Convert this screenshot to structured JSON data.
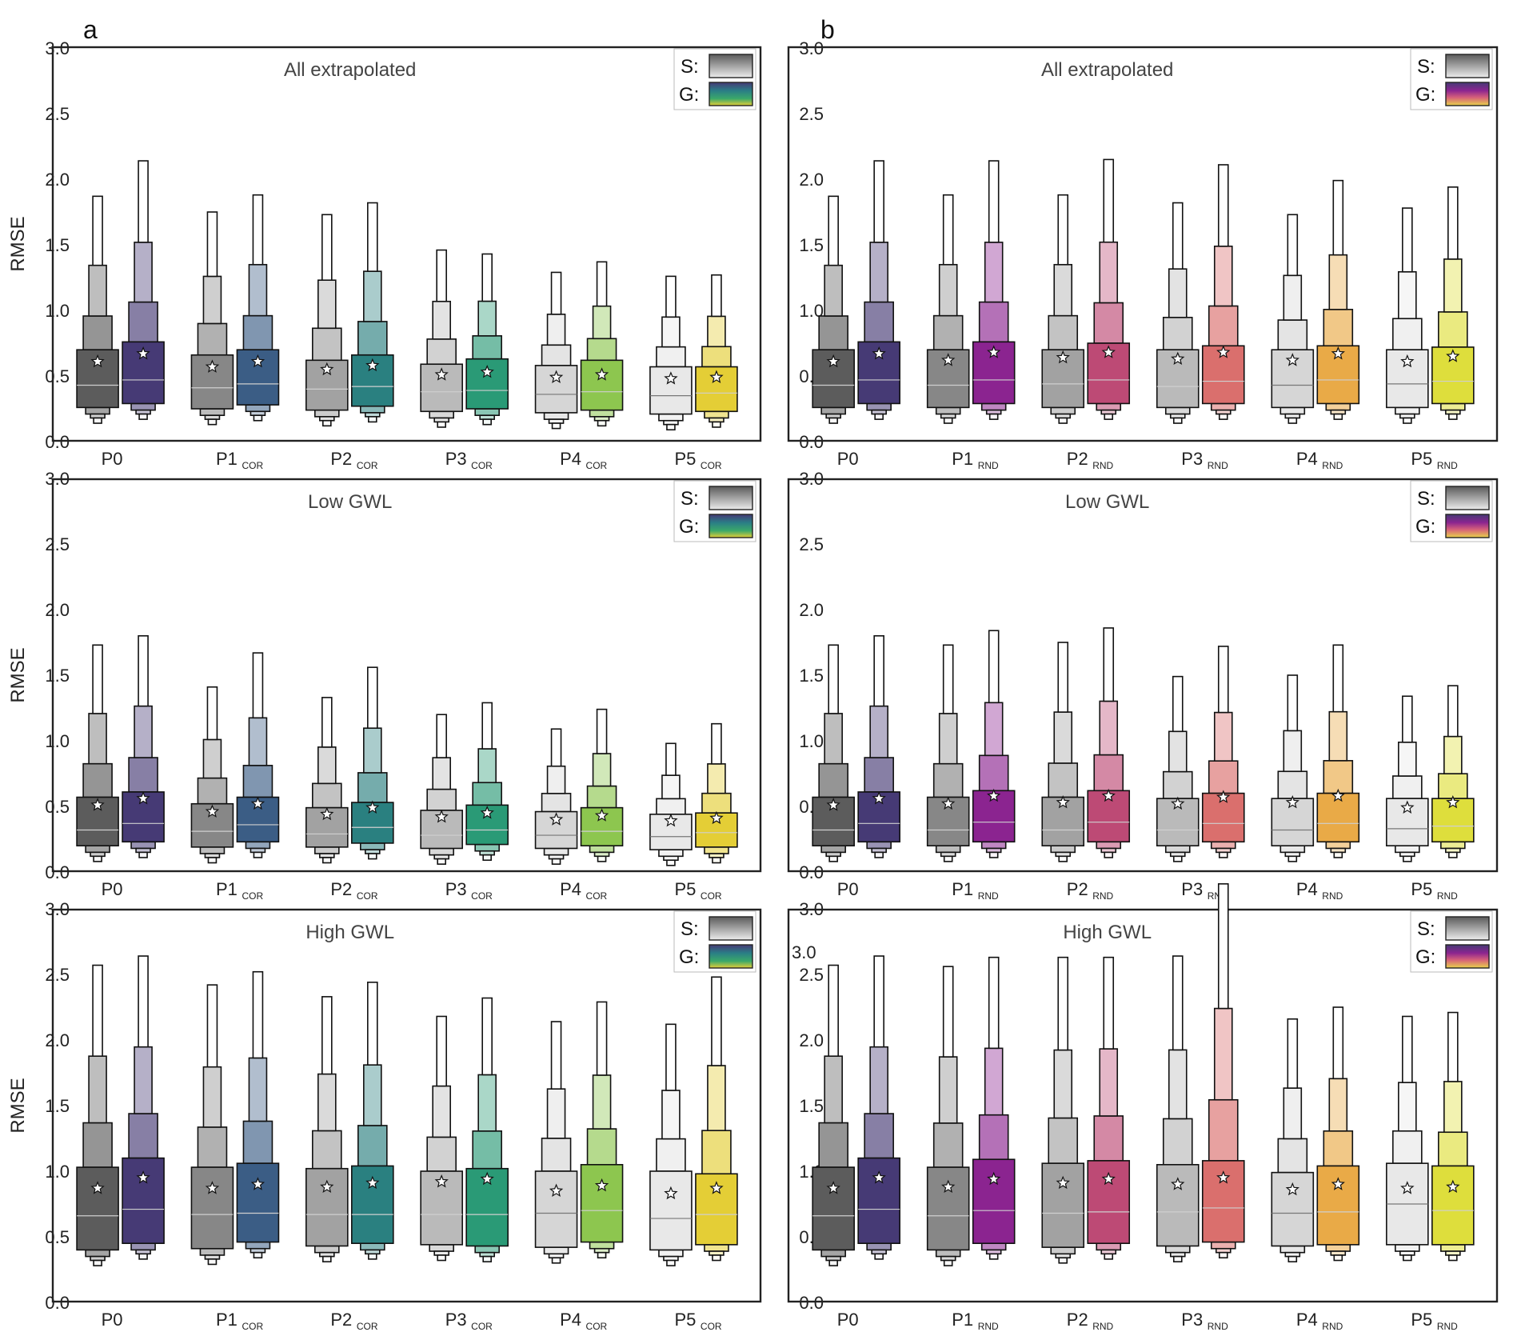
{
  "figure_labels": [
    "a",
    "b"
  ],
  "y_axis_label": "RMSE",
  "y_ticks": [
    "0.0",
    "0.5",
    "1.0",
    "1.5",
    "2.0",
    "2.5",
    "3.0"
  ],
  "stray_tick_label": "3.0",
  "legend": {
    "s_label": "S:",
    "g_label": "G:"
  },
  "colors": {
    "S": [
      "#5c5c5c",
      "#878787",
      "#a2a2a2",
      "#bababa",
      "#d6d6d6",
      "#e8e8e8"
    ],
    "G_a": [
      "#463a75",
      "#3b5d85",
      "#2a8080",
      "#2a9a76",
      "#8dc64f",
      "#e4ce36"
    ],
    "G_b": [
      "#463a75",
      "#8b2490",
      "#bd4a75",
      "#da6f6d",
      "#e9aa47",
      "#dede3c"
    ]
  },
  "chart_data": [
    {
      "type": "boxen",
      "panel": "a",
      "title": "All extrapolated",
      "ylabel": "RMSE",
      "ylim": [
        0,
        3
      ],
      "categories": [
        "P0",
        "P1COR",
        "P2COR",
        "P3COR",
        "P4COR",
        "P5COR"
      ],
      "cat_main": [
        "P0",
        "P1",
        "P2",
        "P3",
        "P4",
        "P5"
      ],
      "cat_sub": [
        "",
        "COR",
        "COR",
        "COR",
        "COR",
        "COR"
      ],
      "series": [
        {
          "name": "S",
          "median": [
            0.43,
            0.41,
            0.4,
            0.38,
            0.36,
            0.35
          ],
          "mean": [
            0.61,
            0.57,
            0.55,
            0.51,
            0.49,
            0.48
          ],
          "q1": [
            0.26,
            0.25,
            0.24,
            0.23,
            0.22,
            0.21
          ],
          "q3": [
            0.7,
            0.66,
            0.62,
            0.59,
            0.58,
            0.57
          ],
          "top": [
            1.87,
            1.75,
            1.73,
            1.46,
            1.29,
            1.26
          ]
        },
        {
          "name": "G",
          "median": [
            0.47,
            0.44,
            0.42,
            0.39,
            0.38,
            0.37
          ],
          "mean": [
            0.67,
            0.61,
            0.58,
            0.53,
            0.51,
            0.49
          ],
          "q1": [
            0.29,
            0.28,
            0.27,
            0.25,
            0.24,
            0.23
          ],
          "q3": [
            0.76,
            0.7,
            0.66,
            0.63,
            0.62,
            0.57
          ],
          "top": [
            2.14,
            1.88,
            1.82,
            1.43,
            1.37,
            1.27
          ]
        }
      ]
    },
    {
      "type": "boxen",
      "panel": "b",
      "title": "All extrapolated",
      "ylabel": "RMSE",
      "ylim": [
        0,
        3
      ],
      "categories": [
        "P0",
        "P1RND",
        "P2RND",
        "P3RND",
        "P4RND",
        "P5RND"
      ],
      "cat_main": [
        "P0",
        "P1",
        "P2",
        "P3",
        "P4",
        "P5"
      ],
      "cat_sub": [
        "",
        "RND",
        "RND",
        "RND",
        "RND",
        "RND"
      ],
      "series": [
        {
          "name": "S",
          "median": [
            0.43,
            0.43,
            0.44,
            0.42,
            0.43,
            0.44
          ],
          "mean": [
            0.61,
            0.62,
            0.64,
            0.63,
            0.62,
            0.61
          ],
          "q1": [
            0.26,
            0.26,
            0.26,
            0.26,
            0.26,
            0.26
          ],
          "q3": [
            0.7,
            0.7,
            0.7,
            0.7,
            0.7,
            0.7
          ],
          "top": [
            1.87,
            1.88,
            1.88,
            1.82,
            1.73,
            1.78
          ]
        },
        {
          "name": "G",
          "median": [
            0.47,
            0.47,
            0.47,
            0.46,
            0.47,
            0.46
          ],
          "mean": [
            0.67,
            0.68,
            0.68,
            0.68,
            0.67,
            0.65
          ],
          "q1": [
            0.29,
            0.29,
            0.29,
            0.29,
            0.29,
            0.29
          ],
          "q3": [
            0.76,
            0.76,
            0.75,
            0.73,
            0.73,
            0.72
          ],
          "top": [
            2.14,
            2.14,
            2.15,
            2.11,
            1.99,
            1.94
          ]
        }
      ]
    },
    {
      "type": "boxen",
      "panel": "a",
      "title": "Low GWL",
      "ylabel": "RMSE",
      "ylim": [
        0,
        3
      ],
      "categories": [
        "P0",
        "P1COR",
        "P2COR",
        "P3COR",
        "P4COR",
        "P5COR"
      ],
      "cat_main": [
        "P0",
        "P1",
        "P2",
        "P3",
        "P4",
        "P5"
      ],
      "cat_sub": [
        "",
        "COR",
        "COR",
        "COR",
        "COR",
        "COR"
      ],
      "series": [
        {
          "name": "S",
          "median": [
            0.32,
            0.31,
            0.29,
            0.28,
            0.28,
            0.27
          ],
          "mean": [
            0.51,
            0.46,
            0.44,
            0.42,
            0.4,
            0.39
          ],
          "q1": [
            0.2,
            0.19,
            0.19,
            0.18,
            0.18,
            0.17
          ],
          "q3": [
            0.57,
            0.52,
            0.49,
            0.47,
            0.46,
            0.44
          ],
          "top": [
            1.73,
            1.41,
            1.33,
            1.2,
            1.09,
            0.98
          ]
        },
        {
          "name": "G",
          "median": [
            0.37,
            0.36,
            0.34,
            0.32,
            0.31,
            0.3
          ],
          "mean": [
            0.56,
            0.52,
            0.49,
            0.45,
            0.43,
            0.41
          ],
          "q1": [
            0.23,
            0.23,
            0.22,
            0.21,
            0.2,
            0.19
          ],
          "q3": [
            0.61,
            0.57,
            0.53,
            0.51,
            0.49,
            0.45
          ],
          "top": [
            1.8,
            1.67,
            1.56,
            1.29,
            1.24,
            1.13
          ]
        }
      ]
    },
    {
      "type": "boxen",
      "panel": "b",
      "title": "Low GWL",
      "ylabel": "RMSE",
      "ylim": [
        0,
        3
      ],
      "categories": [
        "P0",
        "P1RND",
        "P2RND",
        "P3RND",
        "P4RND",
        "P5RND"
      ],
      "cat_main": [
        "P0",
        "P1",
        "P2",
        "P3",
        "P4",
        "P5"
      ],
      "cat_sub": [
        "",
        "RND",
        "RND",
        "RND",
        "RND",
        "RND"
      ],
      "series": [
        {
          "name": "S",
          "median": [
            0.32,
            0.32,
            0.32,
            0.32,
            0.32,
            0.33
          ],
          "mean": [
            0.51,
            0.52,
            0.53,
            0.52,
            0.53,
            0.49
          ],
          "q1": [
            0.2,
            0.2,
            0.2,
            0.2,
            0.2,
            0.2
          ],
          "q3": [
            0.57,
            0.57,
            0.57,
            0.56,
            0.56,
            0.56
          ],
          "top": [
            1.73,
            1.73,
            1.75,
            1.49,
            1.5,
            1.34
          ]
        },
        {
          "name": "G",
          "median": [
            0.37,
            0.38,
            0.38,
            0.37,
            0.37,
            0.35
          ],
          "mean": [
            0.56,
            0.58,
            0.58,
            0.57,
            0.58,
            0.53
          ],
          "q1": [
            0.23,
            0.23,
            0.23,
            0.23,
            0.23,
            0.23
          ],
          "q3": [
            0.61,
            0.62,
            0.62,
            0.6,
            0.6,
            0.56
          ],
          "top": [
            1.8,
            1.84,
            1.86,
            1.72,
            1.73,
            1.42
          ]
        }
      ]
    },
    {
      "type": "boxen",
      "panel": "a",
      "title": "High GWL",
      "ylabel": "RMSE",
      "ylim": [
        0,
        3
      ],
      "categories": [
        "P0",
        "P1COR",
        "P2COR",
        "P3COR",
        "P4COR",
        "P5COR"
      ],
      "cat_main": [
        "P0",
        "P1",
        "P2",
        "P3",
        "P4",
        "P5"
      ],
      "cat_sub": [
        "",
        "COR",
        "COR",
        "COR",
        "COR",
        "COR"
      ],
      "series": [
        {
          "name": "S",
          "median": [
            0.66,
            0.67,
            0.67,
            0.67,
            0.68,
            0.64
          ],
          "mean": [
            0.87,
            0.87,
            0.88,
            0.92,
            0.85,
            0.83
          ],
          "q1": [
            0.4,
            0.41,
            0.43,
            0.44,
            0.42,
            0.4
          ],
          "q3": [
            1.03,
            1.03,
            1.02,
            1.0,
            1.0,
            1.0
          ],
          "top": [
            2.57,
            2.42,
            2.33,
            2.18,
            2.14,
            2.12
          ]
        },
        {
          "name": "G",
          "median": [
            0.71,
            0.68,
            0.67,
            0.67,
            0.7,
            0.67
          ],
          "mean": [
            0.95,
            0.9,
            0.91,
            0.94,
            0.89,
            0.87
          ],
          "q1": [
            0.45,
            0.46,
            0.45,
            0.43,
            0.46,
            0.44
          ],
          "q3": [
            1.1,
            1.06,
            1.04,
            1.02,
            1.05,
            0.98
          ],
          "top": [
            2.64,
            2.52,
            2.44,
            2.32,
            2.29,
            2.48
          ]
        }
      ]
    },
    {
      "type": "boxen",
      "panel": "b",
      "title": "High GWL",
      "ylabel": "RMSE",
      "ylim": [
        0,
        3
      ],
      "categories": [
        "P0",
        "P1RND",
        "P2RND",
        "P3RND",
        "P4RND",
        "P5RND"
      ],
      "cat_main": [
        "P0",
        "P1",
        "P2",
        "P3",
        "P4",
        "P5"
      ],
      "cat_sub": [
        "",
        "RND",
        "RND",
        "RND",
        "RND",
        "RND"
      ],
      "series": [
        {
          "name": "S",
          "median": [
            0.66,
            0.66,
            0.68,
            0.69,
            0.68,
            0.75
          ],
          "mean": [
            0.87,
            0.88,
            0.91,
            0.9,
            0.86,
            0.87
          ],
          "q1": [
            0.4,
            0.4,
            0.42,
            0.43,
            0.43,
            0.44
          ],
          "q3": [
            1.03,
            1.03,
            1.06,
            1.05,
            0.99,
            1.06
          ],
          "top": [
            2.57,
            2.56,
            2.63,
            2.64,
            2.16,
            2.18
          ]
        },
        {
          "name": "G",
          "median": [
            0.71,
            0.7,
            0.69,
            0.72,
            0.69,
            0.7
          ],
          "mean": [
            0.95,
            0.94,
            0.94,
            0.95,
            0.9,
            0.88
          ],
          "q1": [
            0.45,
            0.45,
            0.45,
            0.46,
            0.44,
            0.44
          ],
          "q3": [
            1.1,
            1.09,
            1.08,
            1.08,
            1.04,
            1.04
          ],
          "top": [
            2.64,
            2.63,
            2.63,
            3.19,
            2.25,
            2.21
          ]
        }
      ]
    }
  ]
}
